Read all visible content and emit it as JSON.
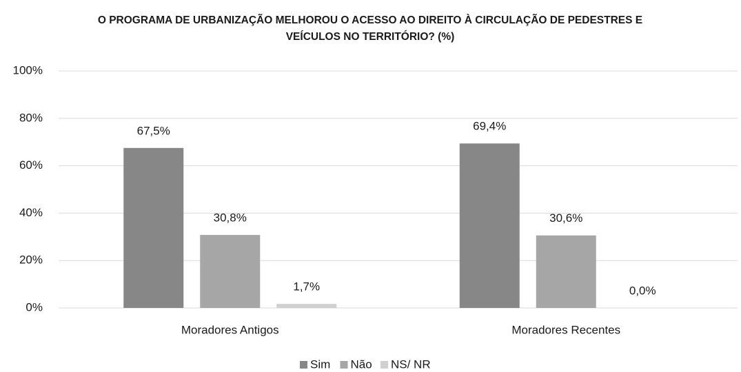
{
  "chart_data": {
    "type": "bar",
    "title": "O PROGRAMA DE URBANIZAÇÃO MELHOROU O ACESSO AO DIREITO À CIRCULAÇÃO DE PEDESTRES E VEÍCULOS NO TERRITÓRIO? (%)",
    "categories": [
      "Moradores Antigos",
      "Moradores Recentes"
    ],
    "series": [
      {
        "name": "Sim",
        "color": "#878787",
        "values": [
          67.5,
          69.4
        ],
        "value_labels": [
          "67,5%",
          "69,4%"
        ]
      },
      {
        "name": "Não",
        "color": "#a6a6a6",
        "values": [
          30.8,
          30.6
        ],
        "value_labels": [
          "30,8%",
          "30,6%"
        ]
      },
      {
        "name": "NS/ NR",
        "color": "#d0d0d0",
        "values": [
          1.7,
          0.0
        ],
        "value_labels": [
          "1,7%",
          "0,0%"
        ]
      }
    ],
    "ylim": [
      0,
      100
    ],
    "yticks": [
      {
        "value": 0,
        "label": "0%"
      },
      {
        "value": 20,
        "label": "20%"
      },
      {
        "value": 40,
        "label": "40%"
      },
      {
        "value": 60,
        "label": "60%"
      },
      {
        "value": 80,
        "label": "80%"
      },
      {
        "value": 100,
        "label": "100%"
      }
    ],
    "grid": true,
    "legend": "bottom"
  }
}
